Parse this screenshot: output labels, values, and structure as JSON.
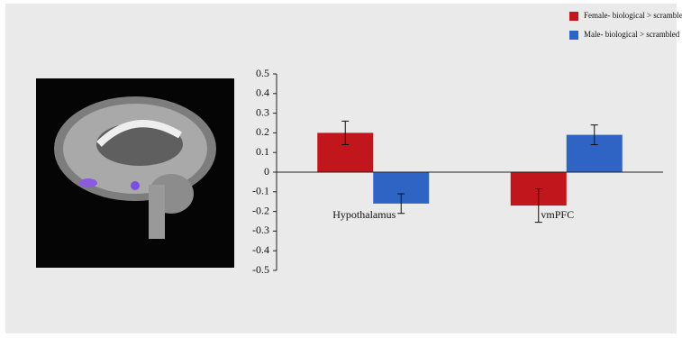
{
  "chart_data": {
    "type": "bar",
    "categories": [
      "Hypothalamus",
      "vmPFC"
    ],
    "series": [
      {
        "name": "Female- biological > scrambled",
        "color": "#c0161c",
        "values": [
          0.2,
          -0.17
        ],
        "errors": [
          0.06,
          0.085
        ]
      },
      {
        "name": "Male- biological > scrambled",
        "color": "#2f64c4",
        "values": [
          -0.16,
          0.19
        ],
        "errors": [
          0.05,
          0.05
        ]
      }
    ],
    "ylim": [
      -0.5,
      0.5
    ],
    "yticks": [
      0.5,
      0.4,
      0.3,
      0.2,
      0.1,
      0,
      -0.1,
      -0.2,
      -0.3,
      -0.4,
      -0.5
    ],
    "legend": "top-right"
  }
}
